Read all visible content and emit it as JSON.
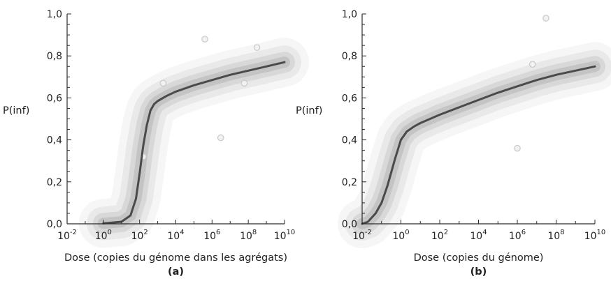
{
  "chart_data": [
    {
      "type": "line",
      "panel_label": "(a)",
      "xlabel": "Dose (copies du génome dans les agrégats)",
      "ylabel": "P(inf)",
      "xscale": "log10",
      "xlim": [
        0.01,
        10000000000
      ],
      "ylim": [
        0,
        1
      ],
      "x_ticks": [
        {
          "exp": "-2"
        },
        {
          "exp": "0"
        },
        {
          "exp": "2"
        },
        {
          "exp": "4"
        },
        {
          "exp": "6"
        },
        {
          "exp": "8"
        },
        {
          "exp": "10"
        }
      ],
      "y_ticks": [
        "0,0",
        "0,2",
        "0,4",
        "0,6",
        "0,8",
        "1,0"
      ],
      "series": [
        {
          "x": [
            1,
            10,
            31.6,
            63.1,
            100,
            158,
            251,
            398,
            631,
            1000,
            1580,
            3160,
            10000,
            100000,
            1000000,
            10000000,
            100000000,
            1000000000,
            10000000000
          ],
          "y": [
            0.002,
            0.01,
            0.04,
            0.12,
            0.24,
            0.37,
            0.47,
            0.54,
            0.57,
            0.585,
            0.595,
            0.61,
            0.63,
            0.66,
            0.685,
            0.71,
            0.73,
            0.75,
            0.77
          ]
        }
      ],
      "points": [
        {
          "x": 158,
          "y": 0.32
        },
        {
          "x": 2000,
          "y": 0.67
        },
        {
          "x": 400000,
          "y": 0.88
        },
        {
          "x": 3000000,
          "y": 0.41
        },
        {
          "x": 60000000,
          "y": 0.67
        },
        {
          "x": 300000000,
          "y": 0.84
        }
      ]
    },
    {
      "type": "line",
      "panel_label": "(b)",
      "xlabel": "Dose (copies du génome)",
      "ylabel": "P(inf)",
      "xscale": "log10",
      "xlim": [
        0.01,
        10000000000
      ],
      "ylim": [
        0,
        1
      ],
      "x_ticks": [
        {
          "exp": "-2"
        },
        {
          "exp": "0"
        },
        {
          "exp": "2"
        },
        {
          "exp": "4"
        },
        {
          "exp": "6"
        },
        {
          "exp": "8"
        },
        {
          "exp": "10"
        }
      ],
      "y_ticks": [
        "0,0",
        "0,2",
        "0,4",
        "0,6",
        "0,8",
        "1,0"
      ],
      "series": [
        {
          "x": [
            0.01,
            0.02,
            0.05,
            0.1,
            0.2,
            0.5,
            1,
            2,
            5,
            10,
            100,
            1000,
            10000,
            100000,
            1000000,
            10000000,
            100000000,
            1000000000,
            10000000000
          ],
          "y": [
            0.0,
            0.01,
            0.05,
            0.1,
            0.18,
            0.31,
            0.4,
            0.44,
            0.465,
            0.48,
            0.52,
            0.555,
            0.59,
            0.625,
            0.655,
            0.685,
            0.71,
            0.73,
            0.75
          ]
        }
      ],
      "points": [
        {
          "x": 1000000,
          "y": 0.36
        },
        {
          "x": 6000000,
          "y": 0.76
        },
        {
          "x": 30000000,
          "y": 0.98
        }
      ]
    }
  ]
}
